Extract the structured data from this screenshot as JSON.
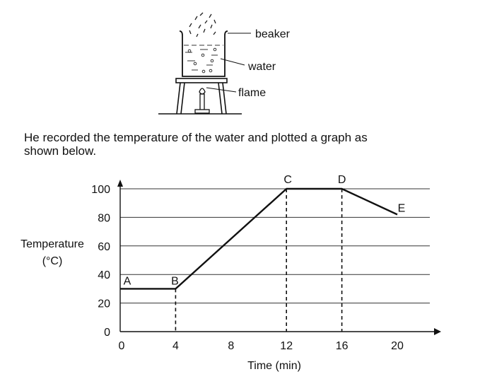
{
  "apparatus": {
    "labels": {
      "beaker": "beaker",
      "water": "water",
      "flame": "flame"
    }
  },
  "question_text": {
    "line1": "He recorded the temperature of the water and plotted a graph as",
    "line2": "shown below."
  },
  "chart_data": {
    "type": "line",
    "ylabel_line1": "Temperature",
    "ylabel_line2": "(°C)",
    "xlabel": "Time (min)",
    "x_ticks": [
      "0",
      "4",
      "8",
      "12",
      "16",
      "20"
    ],
    "y_ticks": [
      "0",
      "20",
      "40",
      "60",
      "80",
      "100"
    ],
    "xlim": [
      0,
      21.5
    ],
    "ylim": [
      0,
      100
    ],
    "grid": "horizontal",
    "series": [
      {
        "points": [
          {
            "label": "A",
            "x": 0,
            "y": 30
          },
          {
            "label": "B",
            "x": 4,
            "y": 30
          },
          {
            "label": "C",
            "x": 12,
            "y": 100
          },
          {
            "label": "D",
            "x": 16,
            "y": 100
          },
          {
            "label": "E",
            "x": 20,
            "y": 82
          }
        ]
      }
    ],
    "dashed_guides_at_x": [
      4,
      12,
      16
    ]
  }
}
